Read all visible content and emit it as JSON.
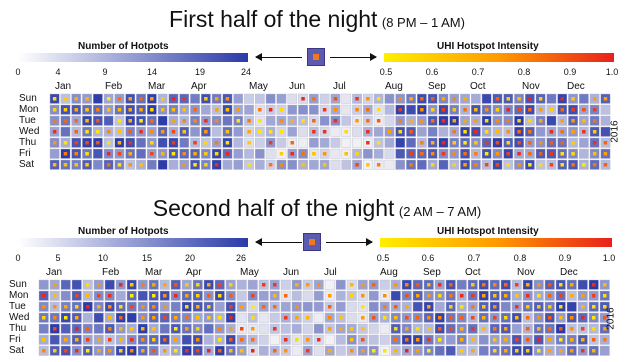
{
  "chart_data": [
    {
      "type": "heatmap",
      "title": "First half of the night",
      "subtitle": "(8 PM – 1 AM)",
      "hotspots_legend": {
        "title": "Number of Hotpots",
        "ticks": [
          "0",
          "4",
          "9",
          "14",
          "19",
          "24"
        ],
        "range": [
          0,
          24
        ],
        "colors": [
          "#ffffff",
          "#2a3aa8"
        ]
      },
      "intensity_legend": {
        "title": "UHI Hotspot Intensity",
        "ticks": [
          "0.5",
          "0.6",
          "0.7",
          "0.8",
          "0.9",
          "1.0"
        ],
        "range": [
          0.5,
          1.0
        ],
        "colors": [
          "#ffee00",
          "#ff9a00",
          "#e8201c"
        ]
      },
      "months": [
        "Jan",
        "Feb",
        "Mar",
        "Apr",
        "May",
        "Jun",
        "Jul",
        "Aug",
        "Sep",
        "Oct",
        "Nov",
        "Dec"
      ],
      "days": [
        "Sun",
        "Mon",
        "Tue",
        "Wed",
        "Thu",
        "Fri",
        "Sat"
      ],
      "year": "2016",
      "weeks": 52
    },
    {
      "type": "heatmap",
      "title": "Second half of the night",
      "subtitle": "(2 AM – 7 AM)",
      "hotspots_legend": {
        "title": "Number of Hotpots",
        "ticks": [
          "0",
          "5",
          "10",
          "15",
          "20",
          "26"
        ],
        "range": [
          0,
          26
        ],
        "colors": [
          "#ffffff",
          "#2a3aa8"
        ]
      },
      "intensity_legend": {
        "title": "UHI Hotspot Intensity",
        "ticks": [
          "0.5",
          "0.6",
          "0.7",
          "0.8",
          "0.9",
          "1.0"
        ],
        "range": [
          0.5,
          1.0
        ],
        "colors": [
          "#ffee00",
          "#ff9a00",
          "#e8201c"
        ]
      },
      "months": [
        "Jan",
        "Feb",
        "Mar",
        "Apr",
        "May",
        "Jun",
        "Jul",
        "Aug",
        "Sep",
        "Oct",
        "Nov",
        "Dec"
      ],
      "days": [
        "Sun",
        "Mon",
        "Tue",
        "Wed",
        "Thu",
        "Fri",
        "Sat"
      ],
      "year": "2016",
      "weeks": 52
    }
  ],
  "colors": {
    "hotspot_low": "#ffffff",
    "hotspot_high": "#2a3aa8",
    "intensity_low": "#ffee00",
    "intensity_mid": "#ff9a00",
    "intensity_high": "#e8201c",
    "swatch": "#5d5bb0",
    "swatch_inner": "#ee7a1c"
  }
}
